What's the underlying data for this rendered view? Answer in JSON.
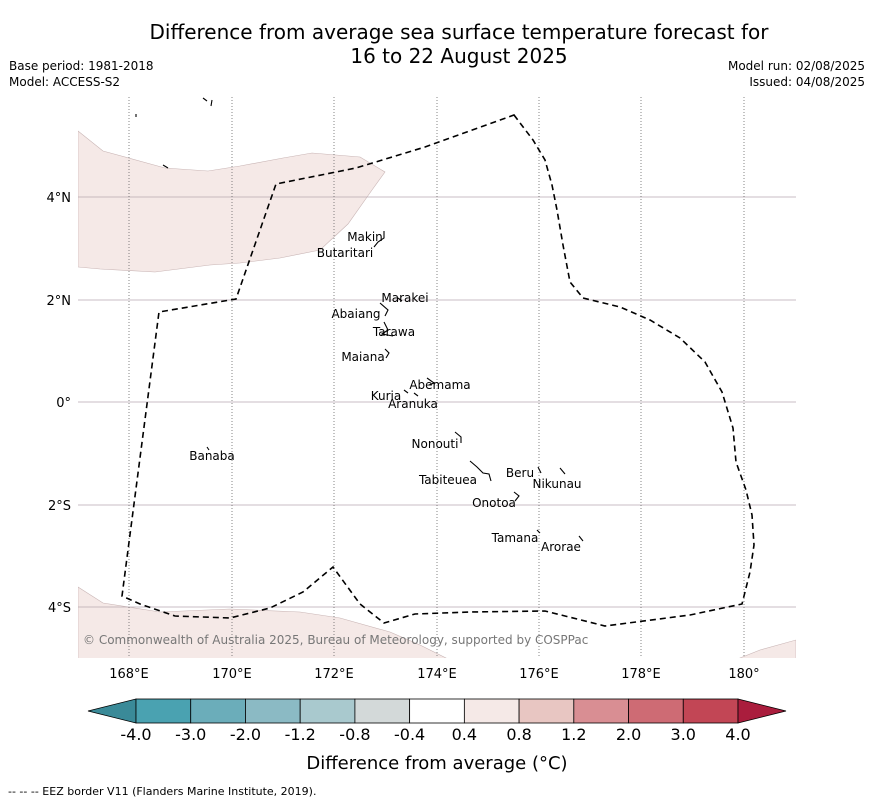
{
  "title_line1": "Difference from average sea surface temperature forecast for",
  "title_line2": "16 to 22 August 2025",
  "base_period": "Base period: 1981-2018",
  "model": "Model: ACCESS-S2",
  "model_run": "Model run: 02/08/2025",
  "issued": "Issued: 04/08/2025",
  "lon_labels": [
    "168°E",
    "170°E",
    "172°E",
    "174°E",
    "176°E",
    "178°E",
    "180°"
  ],
  "lat_labels": [
    "4°N",
    "2°N",
    "0°",
    "2°S",
    "4°S"
  ],
  "islands": [
    "Makin",
    "Butaritari",
    "Marakei",
    "Abaiang",
    "Tarawa",
    "Maiana",
    "Abemama",
    "Kuria",
    "Aranuka",
    "Nonouti",
    "Banaba",
    "Tabiteuea",
    "Beru",
    "Nikunau",
    "Onotoa",
    "Tamana",
    "Arorae"
  ],
  "copyright": "© Commonwealth of Australia 2025, Bureau of Meteorology, supported by COSPPac",
  "colorbar": {
    "ticks": [
      "-4.0",
      "-3.0",
      "-2.0",
      "-1.2",
      "-0.8",
      "-0.4",
      "0.4",
      "0.8",
      "1.2",
      "2.0",
      "3.0",
      "4.0"
    ],
    "colors": [
      "#3a8a98",
      "#4aa2b1",
      "#6badba",
      "#8bbac4",
      "#a9c9ce",
      "#d3d9d9",
      "#ffffff",
      "#f5e9e7",
      "#e8c6c2",
      "#d98e93",
      "#ce6b74",
      "#c24655",
      "#aa1d3d"
    ],
    "label": "Difference from average (°C)"
  },
  "map_colors": {
    "anomaly_0_4_to_0_8": "#f5e9e7",
    "grid": "#b9a9b0"
  },
  "footnote": "--  --  -- EEZ border V11 (Flanders Marine Institute, 2019)."
}
